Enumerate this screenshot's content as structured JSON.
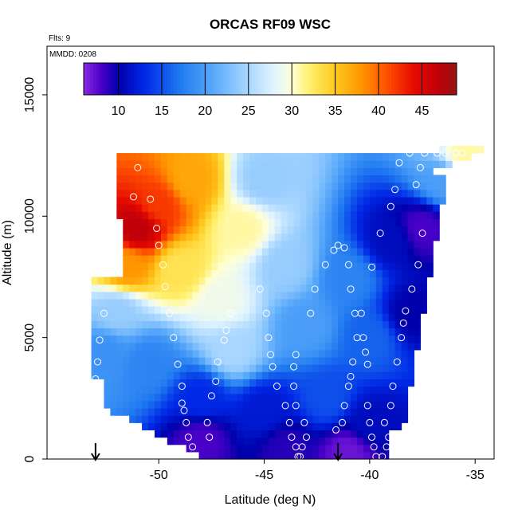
{
  "chart_data": {
    "type": "heatmap",
    "title": "ORCAS RF09 WSC",
    "flights_note": "Flts: 9",
    "date_note": "MMDD: 0208",
    "xlabel": "Latitude (deg N)",
    "ylabel": "Altitude (m)",
    "xlim": [
      -55.3,
      -34.1
    ],
    "ylim": [
      0,
      17000
    ],
    "x_ticks": [
      -50,
      -45,
      -40,
      -35
    ],
    "x_tick_labels": [
      "-50",
      "-45",
      "-40",
      "-35"
    ],
    "y_ticks": [
      0,
      5000,
      10000,
      15000
    ],
    "y_tick_labels": [
      "0",
      "5000",
      "10000",
      "15000"
    ],
    "colorbar": {
      "min": 6,
      "max": 49,
      "ticks": [
        10,
        15,
        20,
        25,
        30,
        35,
        40,
        45
      ],
      "tick_labels": [
        "10",
        "15",
        "20",
        "25",
        "30",
        "35",
        "40",
        "45"
      ]
    },
    "field_anchors": [
      {
        "lat": -51,
        "alt": 9500,
        "value": 47
      },
      {
        "lat": -50,
        "alt": 10500,
        "value": 42
      },
      {
        "lat": -48.5,
        "alt": 11500,
        "value": 37
      },
      {
        "lat": -51.5,
        "alt": 8000,
        "value": 38
      },
      {
        "lat": -49,
        "alt": 7800,
        "value": 33
      },
      {
        "lat": -46,
        "alt": 9500,
        "value": 31
      },
      {
        "lat": -47,
        "alt": 6500,
        "value": 29
      },
      {
        "lat": -44,
        "alt": 8000,
        "value": 24
      },
      {
        "lat": -45,
        "alt": 11500,
        "value": 24
      },
      {
        "lat": -46.5,
        "alt": 4500,
        "value": 25
      },
      {
        "lat": -43,
        "alt": 5500,
        "value": 20
      },
      {
        "lat": -41,
        "alt": 7500,
        "value": 18
      },
      {
        "lat": -40,
        "alt": 5000,
        "value": 16
      },
      {
        "lat": -39,
        "alt": 9000,
        "value": 11
      },
      {
        "lat": -38,
        "alt": 6000,
        "value": 10
      },
      {
        "lat": -37.5,
        "alt": 9500,
        "value": 8
      },
      {
        "lat": -36.5,
        "alt": 11500,
        "value": 20
      },
      {
        "lat": -35.5,
        "alt": 12500,
        "value": 31
      },
      {
        "lat": -50.5,
        "alt": 4000,
        "value": 18
      },
      {
        "lat": -48,
        "alt": 2500,
        "value": 13
      },
      {
        "lat": -45,
        "alt": 2000,
        "value": 12
      },
      {
        "lat": -42,
        "alt": 2500,
        "value": 15
      },
      {
        "lat": -40,
        "alt": 1500,
        "value": 11
      },
      {
        "lat": -48,
        "alt": 800,
        "value": 8
      },
      {
        "lat": -44,
        "alt": 500,
        "value": 9
      },
      {
        "lat": -41,
        "alt": 300,
        "value": 7
      },
      {
        "lat": -52.5,
        "alt": 4500,
        "value": 19
      },
      {
        "lat": -52,
        "alt": 6000,
        "value": 24
      }
    ],
    "observation_points": [
      {
        "lat": -52.6,
        "alt": 6000
      },
      {
        "lat": -52.8,
        "alt": 4900
      },
      {
        "lat": -52.9,
        "alt": 4000
      },
      {
        "lat": -53.0,
        "alt": 3300
      },
      {
        "lat": -51.0,
        "alt": 12000
      },
      {
        "lat": -51.2,
        "alt": 10800
      },
      {
        "lat": -50.4,
        "alt": 10700
      },
      {
        "lat": -50.1,
        "alt": 9500
      },
      {
        "lat": -50.0,
        "alt": 8800
      },
      {
        "lat": -49.8,
        "alt": 8000
      },
      {
        "lat": -49.7,
        "alt": 7100
      },
      {
        "lat": -49.5,
        "alt": 6000
      },
      {
        "lat": -49.3,
        "alt": 5000
      },
      {
        "lat": -49.1,
        "alt": 3900
      },
      {
        "lat": -48.9,
        "alt": 3000
      },
      {
        "lat": -48.9,
        "alt": 2300
      },
      {
        "lat": -48.8,
        "alt": 2000
      },
      {
        "lat": -48.7,
        "alt": 1500
      },
      {
        "lat": -48.6,
        "alt": 900
      },
      {
        "lat": -48.4,
        "alt": 500
      },
      {
        "lat": -48.3,
        "alt": 100
      },
      {
        "lat": -47.6,
        "alt": 900
      },
      {
        "lat": -47.7,
        "alt": 1500
      },
      {
        "lat": -47.5,
        "alt": 2600
      },
      {
        "lat": -47.3,
        "alt": 3200
      },
      {
        "lat": -47.2,
        "alt": 4000
      },
      {
        "lat": -46.9,
        "alt": 4900
      },
      {
        "lat": -46.8,
        "alt": 5300
      },
      {
        "lat": -46.6,
        "alt": 6000
      },
      {
        "lat": -45.2,
        "alt": 7000
      },
      {
        "lat": -44.9,
        "alt": 6000
      },
      {
        "lat": -44.8,
        "alt": 5000
      },
      {
        "lat": -44.7,
        "alt": 4300
      },
      {
        "lat": -44.6,
        "alt": 3800
      },
      {
        "lat": -44.4,
        "alt": 3000
      },
      {
        "lat": -44.0,
        "alt": 2200
      },
      {
        "lat": -43.8,
        "alt": 1500
      },
      {
        "lat": -43.7,
        "alt": 900
      },
      {
        "lat": -43.5,
        "alt": 500
      },
      {
        "lat": -43.3,
        "alt": 100
      },
      {
        "lat": -43.1,
        "alt": 1500
      },
      {
        "lat": -43.0,
        "alt": 900
      },
      {
        "lat": -43.2,
        "alt": 500
      },
      {
        "lat": -43.4,
        "alt": 100
      },
      {
        "lat": -43.5,
        "alt": 2200
      },
      {
        "lat": -43.6,
        "alt": 3000
      },
      {
        "lat": -43.6,
        "alt": 3800
      },
      {
        "lat": -43.5,
        "alt": 4300
      },
      {
        "lat": -42.8,
        "alt": 6000
      },
      {
        "lat": -42.6,
        "alt": 7000
      },
      {
        "lat": -42.1,
        "alt": 8000
      },
      {
        "lat": -41.7,
        "alt": 8600
      },
      {
        "lat": -41.5,
        "alt": 8800
      },
      {
        "lat": -41.2,
        "alt": 8700
      },
      {
        "lat": -41.0,
        "alt": 8000
      },
      {
        "lat": -40.9,
        "alt": 7000
      },
      {
        "lat": -40.7,
        "alt": 6000
      },
      {
        "lat": -40.6,
        "alt": 5000
      },
      {
        "lat": -40.8,
        "alt": 4000
      },
      {
        "lat": -40.9,
        "alt": 3400
      },
      {
        "lat": -41.0,
        "alt": 3000
      },
      {
        "lat": -41.2,
        "alt": 2200
      },
      {
        "lat": -41.3,
        "alt": 1500
      },
      {
        "lat": -41.6,
        "alt": 1200
      },
      {
        "lat": -40.1,
        "alt": 2200
      },
      {
        "lat": -40.0,
        "alt": 1500
      },
      {
        "lat": -39.9,
        "alt": 900
      },
      {
        "lat": -39.8,
        "alt": 500
      },
      {
        "lat": -39.7,
        "alt": 100
      },
      {
        "lat": -40.4,
        "alt": 6000
      },
      {
        "lat": -40.3,
        "alt": 5000
      },
      {
        "lat": -40.2,
        "alt": 4400
      },
      {
        "lat": -40.1,
        "alt": 3900
      },
      {
        "lat": -39.9,
        "alt": 7900
      },
      {
        "lat": -39.5,
        "alt": 9300
      },
      {
        "lat": -39.0,
        "alt": 10400
      },
      {
        "lat": -38.8,
        "alt": 11100
      },
      {
        "lat": -38.6,
        "alt": 12200
      },
      {
        "lat": -38.1,
        "alt": 12600
      },
      {
        "lat": -37.4,
        "alt": 12600
      },
      {
        "lat": -37.6,
        "alt": 12000
      },
      {
        "lat": -37.8,
        "alt": 11300
      },
      {
        "lat": -37.5,
        "alt": 9300
      },
      {
        "lat": -37.7,
        "alt": 8000
      },
      {
        "lat": -38.0,
        "alt": 7000
      },
      {
        "lat": -38.3,
        "alt": 6100
      },
      {
        "lat": -38.4,
        "alt": 5600
      },
      {
        "lat": -38.5,
        "alt": 5000
      },
      {
        "lat": -38.7,
        "alt": 4000
      },
      {
        "lat": -38.9,
        "alt": 3000
      },
      {
        "lat": -39.0,
        "alt": 2200
      },
      {
        "lat": -39.3,
        "alt": 1500
      },
      {
        "lat": -39.1,
        "alt": 900
      },
      {
        "lat": -39.2,
        "alt": 500
      },
      {
        "lat": -39.4,
        "alt": 100
      },
      {
        "lat": -36.4,
        "alt": 12600
      },
      {
        "lat": -35.9,
        "alt": 12600
      },
      {
        "lat": -35.6,
        "alt": 12600
      },
      {
        "lat": -36.8,
        "alt": 12600
      }
    ],
    "arrows": [
      {
        "lat": -53.0
      },
      {
        "lat": -41.5
      }
    ]
  }
}
